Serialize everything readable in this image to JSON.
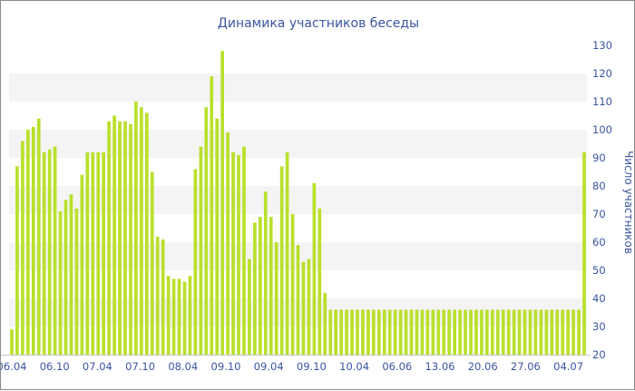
{
  "chart_data": {
    "type": "bar",
    "title": "Динамика участников беседы",
    "ylabel": "Число участников",
    "xlabel": "",
    "ylim": [
      20,
      130
    ],
    "yticks": [
      20,
      30,
      40,
      50,
      60,
      70,
      80,
      90,
      100,
      110,
      120,
      130
    ],
    "xtick_labels": [
      "06.04",
      "06.10",
      "07.04",
      "07.10",
      "08.04",
      "09.10",
      "09.04",
      "09.10",
      "10.04",
      "06.06",
      "13.06",
      "20.06",
      "27.06",
      "04.07"
    ],
    "values": [
      29,
      87,
      96,
      100,
      101,
      104,
      92,
      93,
      94,
      71,
      75,
      77,
      72,
      84,
      92,
      92,
      92,
      92,
      103,
      105,
      103,
      103,
      102,
      110,
      108,
      106,
      85,
      62,
      61,
      48,
      47,
      47,
      46,
      48,
      86,
      94,
      108,
      119,
      104,
      128,
      99,
      92,
      91,
      94,
      54,
      67,
      69,
      78,
      69,
      60,
      87,
      92,
      70,
      59,
      53,
      54,
      81,
      72,
      42,
      36,
      36,
      36,
      36,
      36,
      36,
      36,
      36,
      36,
      36,
      36,
      36,
      36,
      36,
      36,
      36,
      36,
      36,
      36,
      36,
      36,
      36,
      36,
      36,
      36,
      36,
      36,
      36,
      36,
      36,
      36,
      36,
      36,
      36,
      36,
      36,
      36,
      36,
      36,
      36,
      36,
      36,
      36,
      36,
      36,
      36,
      36,
      92
    ],
    "grid": true,
    "grid_style": "alternating horizontal bands",
    "y_axis_side": "right",
    "legend": "none",
    "bar_color": "#b9e02b",
    "band_color": "#f4f4f4",
    "text_color": "#3a55a0"
  }
}
